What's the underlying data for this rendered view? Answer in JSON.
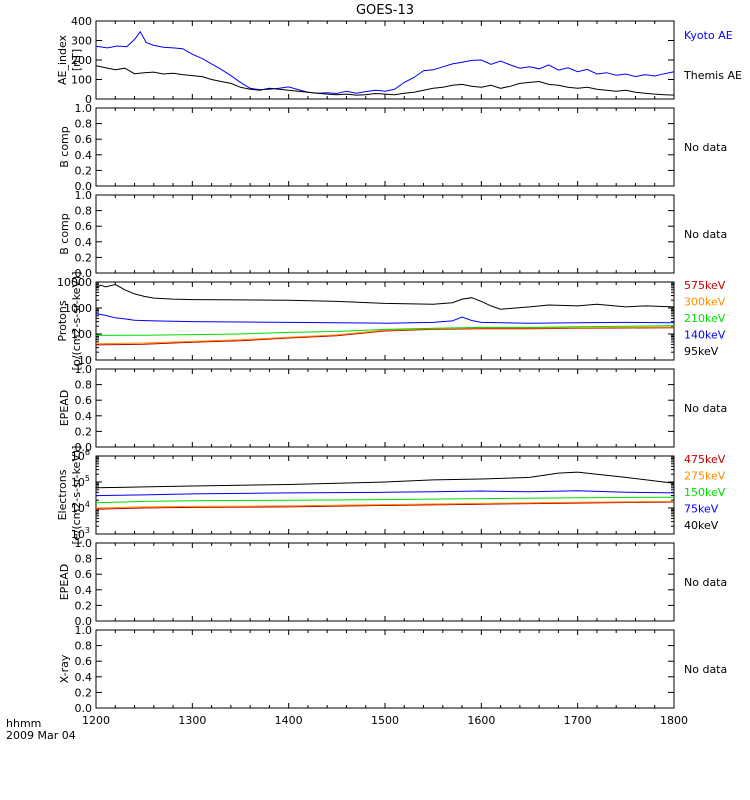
{
  "title": "GOES-13",
  "footer": {
    "time_label": "hhmm",
    "date_label": "2009 Mar 04"
  },
  "colors": {
    "axes": "#000000",
    "kyoto": "#0000ff",
    "themis": "#000000",
    "p575": "#c00000",
    "p300": "#ff8c00",
    "p210": "#00dd00",
    "p140": "#0000ff",
    "p95": "#000000",
    "e475": "#c00000",
    "e275": "#ff8c00",
    "e150": "#00dd00",
    "e75": "#0000ff",
    "e40": "#000000"
  },
  "x_axis": {
    "ticks": [
      "1200",
      "1300",
      "1400",
      "1500",
      "1600",
      "1700",
      "1800"
    ]
  },
  "chart_data": [
    {
      "id": "ae",
      "type": "line",
      "ylabel": "AE_index [nT]",
      "ylim": [
        0,
        400
      ],
      "yticks": [
        "0",
        "100",
        "200",
        "300",
        "400"
      ],
      "legend": "right",
      "series": [
        {
          "name": "Kyoto AE",
          "color": "#0000ff",
          "x": [
            1200,
            1212,
            1222,
            1232,
            1240,
            1246,
            1252,
            1260,
            1270,
            1280,
            1290,
            1300,
            1310,
            1320,
            1330,
            1340,
            1350,
            1360,
            1370,
            1380,
            1390,
            1400,
            1410,
            1420,
            1430,
            1440,
            1450,
            1460,
            1470,
            1480,
            1490,
            1500,
            1510,
            1520,
            1530,
            1540,
            1550,
            1560,
            1570,
            1580,
            1590,
            1600,
            1610,
            1620,
            1630,
            1640,
            1650,
            1660,
            1670,
            1680,
            1690,
            1700,
            1710,
            1720,
            1730,
            1740,
            1750,
            1760,
            1770,
            1780,
            1790,
            1800
          ],
          "values": [
            270,
            262,
            272,
            268,
            305,
            345,
            290,
            275,
            265,
            262,
            258,
            230,
            208,
            180,
            152,
            120,
            85,
            55,
            48,
            50,
            55,
            62,
            48,
            35,
            30,
            32,
            28,
            40,
            30,
            38,
            45,
            40,
            50,
            85,
            110,
            145,
            150,
            165,
            180,
            188,
            198,
            200,
            178,
            195,
            175,
            158,
            165,
            155,
            175,
            148,
            160,
            140,
            152,
            128,
            135,
            122,
            128,
            115,
            125,
            118,
            130,
            140
          ]
        },
        {
          "name": "Themis AE",
          "color": "#000000",
          "x": [
            1200,
            1210,
            1220,
            1230,
            1240,
            1250,
            1260,
            1270,
            1280,
            1290,
            1300,
            1310,
            1320,
            1330,
            1340,
            1350,
            1360,
            1370,
            1380,
            1390,
            1400,
            1410,
            1420,
            1430,
            1440,
            1450,
            1460,
            1470,
            1480,
            1490,
            1500,
            1510,
            1520,
            1530,
            1540,
            1550,
            1560,
            1570,
            1580,
            1590,
            1600,
            1610,
            1620,
            1630,
            1640,
            1650,
            1660,
            1670,
            1680,
            1690,
            1700,
            1710,
            1720,
            1730,
            1740,
            1750,
            1760,
            1770,
            1780,
            1790,
            1800
          ],
          "values": [
            170,
            160,
            150,
            158,
            130,
            135,
            138,
            128,
            132,
            125,
            120,
            115,
            100,
            90,
            80,
            60,
            50,
            45,
            55,
            50,
            45,
            40,
            35,
            30,
            25,
            22,
            25,
            20,
            22,
            28,
            25,
            22,
            30,
            35,
            45,
            55,
            60,
            70,
            75,
            65,
            60,
            70,
            55,
            65,
            80,
            85,
            90,
            75,
            70,
            60,
            55,
            60,
            50,
            45,
            40,
            45,
            35,
            30,
            25,
            22,
            20
          ]
        }
      ]
    },
    {
      "id": "bcomp1",
      "type": "line",
      "ylabel": "B comp",
      "ylim": [
        0,
        1
      ],
      "yticks": [
        "0.0",
        "0.2",
        "0.4",
        "0.6",
        "0.8",
        "1.0"
      ],
      "note": "No data"
    },
    {
      "id": "bcomp2",
      "type": "line",
      "ylabel": "B comp",
      "ylim": [
        0,
        1
      ],
      "yticks": [
        "0.0",
        "0.2",
        "0.4",
        "0.6",
        "0.8",
        "1.0"
      ],
      "note": "No data"
    },
    {
      "id": "protons",
      "type": "line",
      "ylabel": "Protons [p/(cm2-s-sr-keV)]",
      "yscale": "log",
      "ylim": [
        10,
        10000
      ],
      "yticks": [
        "10",
        "100",
        "1000",
        "10000"
      ],
      "legend": "right",
      "series": [
        {
          "name": "575keV",
          "color": "#c00000",
          "x": [
            1200,
            1250,
            1300,
            1350,
            1400,
            1450,
            1500,
            1550,
            1600,
            1650,
            1700,
            1750,
            1800
          ],
          "values": [
            38,
            40,
            48,
            55,
            70,
            85,
            130,
            150,
            160,
            160,
            165,
            170,
            175
          ]
        },
        {
          "name": "300keV",
          "color": "#ff8c00",
          "x": [
            1200,
            1250,
            1300,
            1350,
            1400,
            1450,
            1500,
            1550,
            1600,
            1650,
            1700,
            1750,
            1800
          ],
          "values": [
            42,
            45,
            52,
            60,
            75,
            92,
            140,
            160,
            170,
            170,
            175,
            180,
            185
          ]
        },
        {
          "name": "210keV",
          "color": "#00dd00",
          "x": [
            1200,
            1250,
            1300,
            1350,
            1400,
            1450,
            1500,
            1550,
            1600,
            1650,
            1700,
            1750,
            1800
          ],
          "values": [
            88,
            90,
            95,
            100,
            115,
            125,
            150,
            165,
            180,
            180,
            190,
            200,
            210
          ]
        },
        {
          "name": "140keV",
          "color": "#0000ff",
          "x": [
            1200,
            1210,
            1220,
            1230,
            1240,
            1260,
            1280,
            1300,
            1350,
            1400,
            1450,
            1500,
            1550,
            1570,
            1580,
            1590,
            1600,
            1650,
            1700,
            1750,
            1800
          ],
          "values": [
            600,
            520,
            420,
            380,
            340,
            320,
            310,
            300,
            290,
            280,
            270,
            260,
            280,
            320,
            450,
            330,
            280,
            260,
            270,
            280,
            270
          ]
        },
        {
          "name": "95keV",
          "color": "#000000",
          "x": [
            1200,
            1205,
            1210,
            1220,
            1230,
            1240,
            1250,
            1260,
            1280,
            1300,
            1350,
            1400,
            1450,
            1500,
            1550,
            1570,
            1580,
            1590,
            1600,
            1610,
            1620,
            1650,
            1670,
            1700,
            1720,
            1750,
            1770,
            1800
          ],
          "values": [
            6000,
            7500,
            6500,
            8000,
            5000,
            3500,
            2800,
            2400,
            2200,
            2100,
            2050,
            2000,
            1800,
            1500,
            1400,
            1600,
            2200,
            2500,
            1800,
            1200,
            900,
            1100,
            1300,
            1200,
            1400,
            1100,
            1200,
            1100
          ]
        }
      ]
    },
    {
      "id": "epead1",
      "type": "line",
      "ylabel": "EPEAD",
      "ylim": [
        0,
        1
      ],
      "yticks": [
        "0.0",
        "0.2",
        "0.4",
        "0.6",
        "0.8",
        "1.0"
      ],
      "note": "No data"
    },
    {
      "id": "electrons",
      "type": "line",
      "ylabel": "Electrons [e/(cm2-s-sr-keV)]",
      "yscale": "log",
      "ylim": [
        1000,
        1000000
      ],
      "yticks": [
        "10^3",
        "10^4",
        "10^5",
        "10^6"
      ],
      "legend": "right",
      "series": [
        {
          "name": "475keV",
          "color": "#c00000",
          "x": [
            1200,
            1250,
            1300,
            1400,
            1500,
            1600,
            1700,
            1800
          ],
          "values": [
            9000,
            10000,
            10500,
            11000,
            12500,
            14000,
            15500,
            17000
          ]
        },
        {
          "name": "275keV",
          "color": "#ff8c00",
          "x": [
            1200,
            1250,
            1300,
            1400,
            1500,
            1600,
            1700,
            1800
          ],
          "values": [
            10000,
            11000,
            11500,
            12000,
            13500,
            15000,
            16500,
            18000
          ]
        },
        {
          "name": "150keV",
          "color": "#00dd00",
          "x": [
            1200,
            1250,
            1300,
            1400,
            1500,
            1600,
            1700,
            1800
          ],
          "values": [
            16000,
            18000,
            19000,
            20000,
            21000,
            23000,
            25000,
            26000
          ]
        },
        {
          "name": "75keV",
          "color": "#0000ff",
          "x": [
            1200,
            1250,
            1300,
            1400,
            1500,
            1550,
            1600,
            1650,
            1700,
            1750,
            1800
          ],
          "values": [
            30000,
            32000,
            35000,
            38000,
            40000,
            42000,
            45000,
            42000,
            46000,
            40000,
            38000
          ]
        },
        {
          "name": "40keV",
          "color": "#000000",
          "x": [
            1200,
            1250,
            1300,
            1350,
            1400,
            1450,
            1500,
            1550,
            1600,
            1650,
            1680,
            1700,
            1720,
            1750,
            1800
          ],
          "values": [
            60000,
            65000,
            70000,
            75000,
            80000,
            90000,
            100000,
            120000,
            130000,
            150000,
            220000,
            240000,
            200000,
            150000,
            90000
          ]
        }
      ]
    },
    {
      "id": "epead2",
      "type": "line",
      "ylabel": "EPEAD",
      "ylim": [
        0,
        1
      ],
      "yticks": [
        "0.0",
        "0.2",
        "0.4",
        "0.6",
        "0.8",
        "1.0"
      ],
      "note": "No data"
    },
    {
      "id": "xray",
      "type": "line",
      "ylabel": "X-ray",
      "ylim": [
        0,
        1
      ],
      "yticks": [
        "0.0",
        "0.2",
        "0.4",
        "0.6",
        "0.8",
        "1.0"
      ],
      "note": "No data"
    }
  ]
}
